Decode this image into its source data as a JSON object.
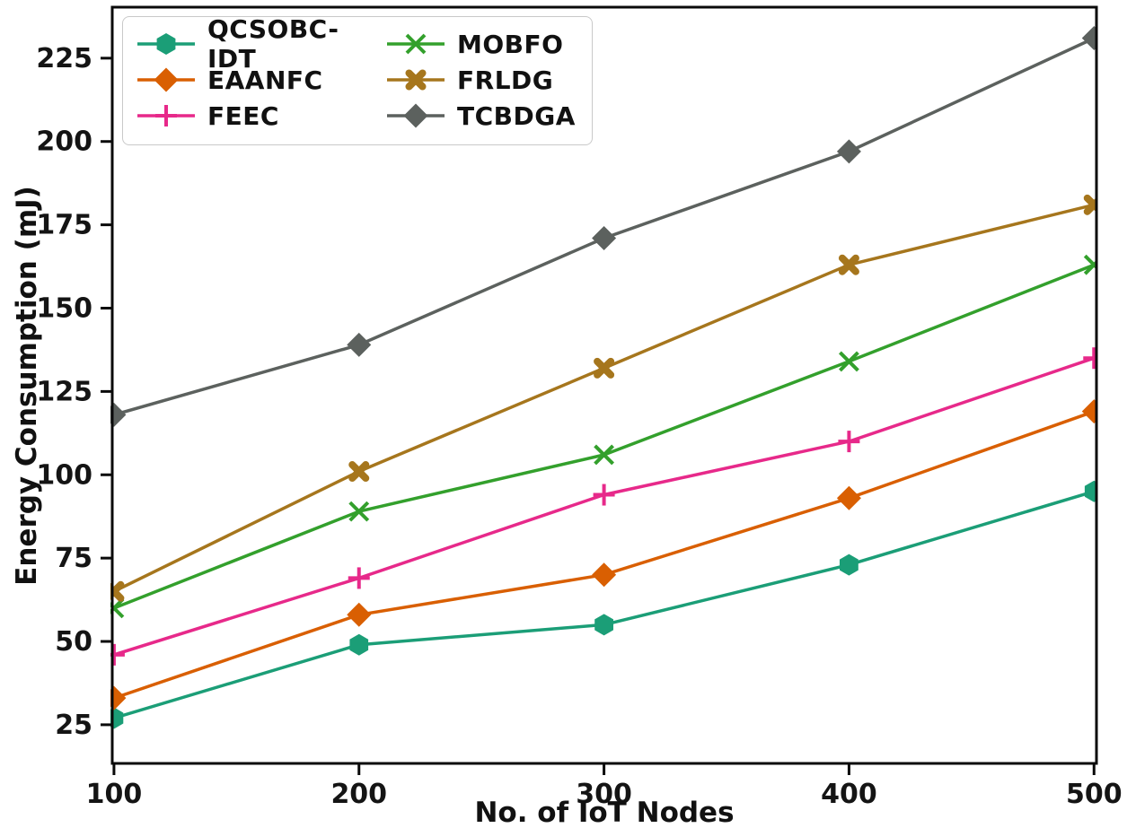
{
  "chart_data": {
    "type": "line",
    "title": "",
    "xlabel": "No. of IoT Nodes",
    "ylabel": "Energy Consumption (mJ)",
    "x": [
      100,
      200,
      300,
      400,
      500
    ],
    "xtick_labels": [
      "100",
      "200",
      "300",
      "400",
      "500"
    ],
    "ytick_values": [
      25,
      50,
      75,
      100,
      125,
      150,
      175,
      200,
      225
    ],
    "xlim": [
      99.3,
      501
    ],
    "ylim": [
      13.4,
      240.3
    ],
    "grid": false,
    "legend": {
      "position": "upper-left",
      "columns": 2,
      "order": [
        "QCSOBC-IDT",
        "EAANFC",
        "FEEC",
        "MOBFO",
        "FRLDG",
        "TCBDGA"
      ]
    },
    "axis_color": "#0a0a0a",
    "tick_label_color": "#141414",
    "series": [
      {
        "name": "QCSOBC-IDT",
        "color": "#1b9e77",
        "marker": "hexagon",
        "values": [
          27,
          49,
          55,
          73,
          95
        ]
      },
      {
        "name": "EAANFC",
        "color": "#d95f02",
        "marker": "diamond",
        "values": [
          33,
          58,
          70,
          93,
          119
        ]
      },
      {
        "name": "FEEC",
        "color": "#e7298a",
        "marker": "plus",
        "values": [
          46,
          69,
          94,
          110,
          135
        ]
      },
      {
        "name": "MOBFO",
        "color": "#33a02c",
        "marker": "x",
        "values": [
          60,
          89,
          106,
          134,
          163
        ]
      },
      {
        "name": "FRLDG",
        "color": "#a6761d",
        "marker": "x-bold",
        "values": [
          65,
          101,
          132,
          163,
          181
        ]
      },
      {
        "name": "TCBDGA",
        "color": "#5c615e",
        "marker": "diamond",
        "values": [
          118,
          139,
          171,
          197,
          231
        ]
      }
    ]
  }
}
